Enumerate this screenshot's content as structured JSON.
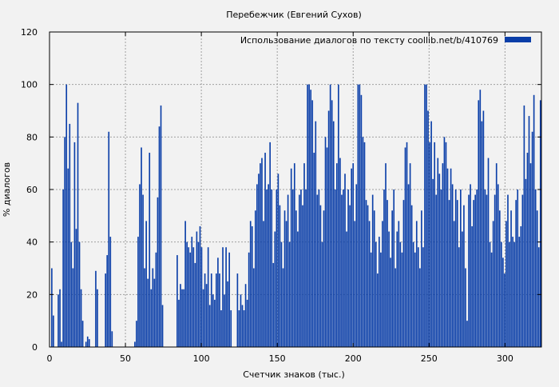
{
  "chart_data": {
    "type": "bar",
    "title": "Перебежчик (Евгений Сухов)",
    "xlabel": "Счетчик знаков (тыс.)",
    "ylabel": "% диалогов",
    "xlim": [
      0,
      324
    ],
    "ylim": [
      0,
      120
    ],
    "x_ticks": [
      0,
      50,
      100,
      150,
      200,
      250,
      300
    ],
    "y_ticks": [
      0,
      20,
      40,
      60,
      80,
      100,
      120
    ],
    "grid": true,
    "legend_position": "top-right",
    "series": [
      {
        "name": "Использование диалогов по тексту  coollib.net/b/410769",
        "color": "#0a3ea8",
        "values": [
          0,
          30,
          12,
          0,
          0,
          20,
          22,
          2,
          60,
          80,
          100,
          68,
          85,
          40,
          30,
          78,
          45,
          93,
          40,
          22,
          10,
          0,
          2,
          4,
          3,
          0,
          0,
          0,
          29,
          22,
          0,
          0,
          0,
          0,
          28,
          35,
          82,
          42,
          6,
          0,
          0,
          0,
          0,
          0,
          0,
          0,
          0,
          0,
          0,
          0,
          0,
          0,
          2,
          10,
          42,
          62,
          76,
          58,
          30,
          48,
          26,
          74,
          22,
          30,
          26,
          36,
          57,
          84,
          92,
          16,
          0,
          0,
          0,
          0,
          0,
          0,
          0,
          0,
          35,
          18,
          24,
          22,
          22,
          48,
          40,
          38,
          36,
          42,
          38,
          32,
          44,
          40,
          46,
          38,
          22,
          28,
          24,
          38,
          16,
          28,
          20,
          18,
          28,
          34,
          28,
          14,
          38,
          20,
          38,
          25,
          36,
          14,
          0,
          0,
          0,
          28,
          14,
          20,
          16,
          14,
          24,
          18,
          36,
          48,
          46,
          30,
          52,
          62,
          66,
          70,
          72,
          48,
          74,
          60,
          62,
          78,
          60,
          32,
          44,
          60,
          66,
          54,
          40,
          30,
          52,
          48,
          58,
          40,
          68,
          60,
          70,
          52,
          44,
          58,
          60,
          54,
          70,
          60,
          100,
          100,
          98,
          94,
          74,
          86,
          58,
          60,
          54,
          40,
          52,
          80,
          76,
          90,
          100,
          94,
          86,
          60,
          70,
          100,
          72,
          58,
          60,
          66,
          44,
          60,
          54,
          68,
          70,
          48,
          62,
          100,
          100,
          96,
          80,
          78,
          56,
          54,
          48,
          36,
          58,
          52,
          40,
          28,
          42,
          36,
          48,
          60,
          70,
          56,
          44,
          34,
          52,
          60,
          30,
          44,
          48,
          40,
          36,
          56,
          76,
          78,
          62,
          70,
          54,
          40,
          36,
          48,
          38,
          30,
          52,
          38,
          100,
          100,
          90,
          78,
          86,
          64,
          78,
          58,
          72,
          66,
          60,
          70,
          80,
          78,
          68,
          56,
          68,
          62,
          48,
          60,
          56,
          38,
          60,
          44,
          54,
          30,
          10,
          58,
          62,
          46,
          56,
          58,
          60,
          94,
          98,
          86,
          90,
          60,
          58,
          72,
          40,
          36,
          48,
          58,
          70,
          62,
          52,
          40,
          34,
          28,
          48,
          58,
          40,
          52,
          42,
          40,
          56,
          60,
          42,
          46,
          58,
          92,
          64,
          74,
          88,
          70,
          82,
          96,
          60,
          52,
          38,
          94
        ]
      }
    ]
  }
}
